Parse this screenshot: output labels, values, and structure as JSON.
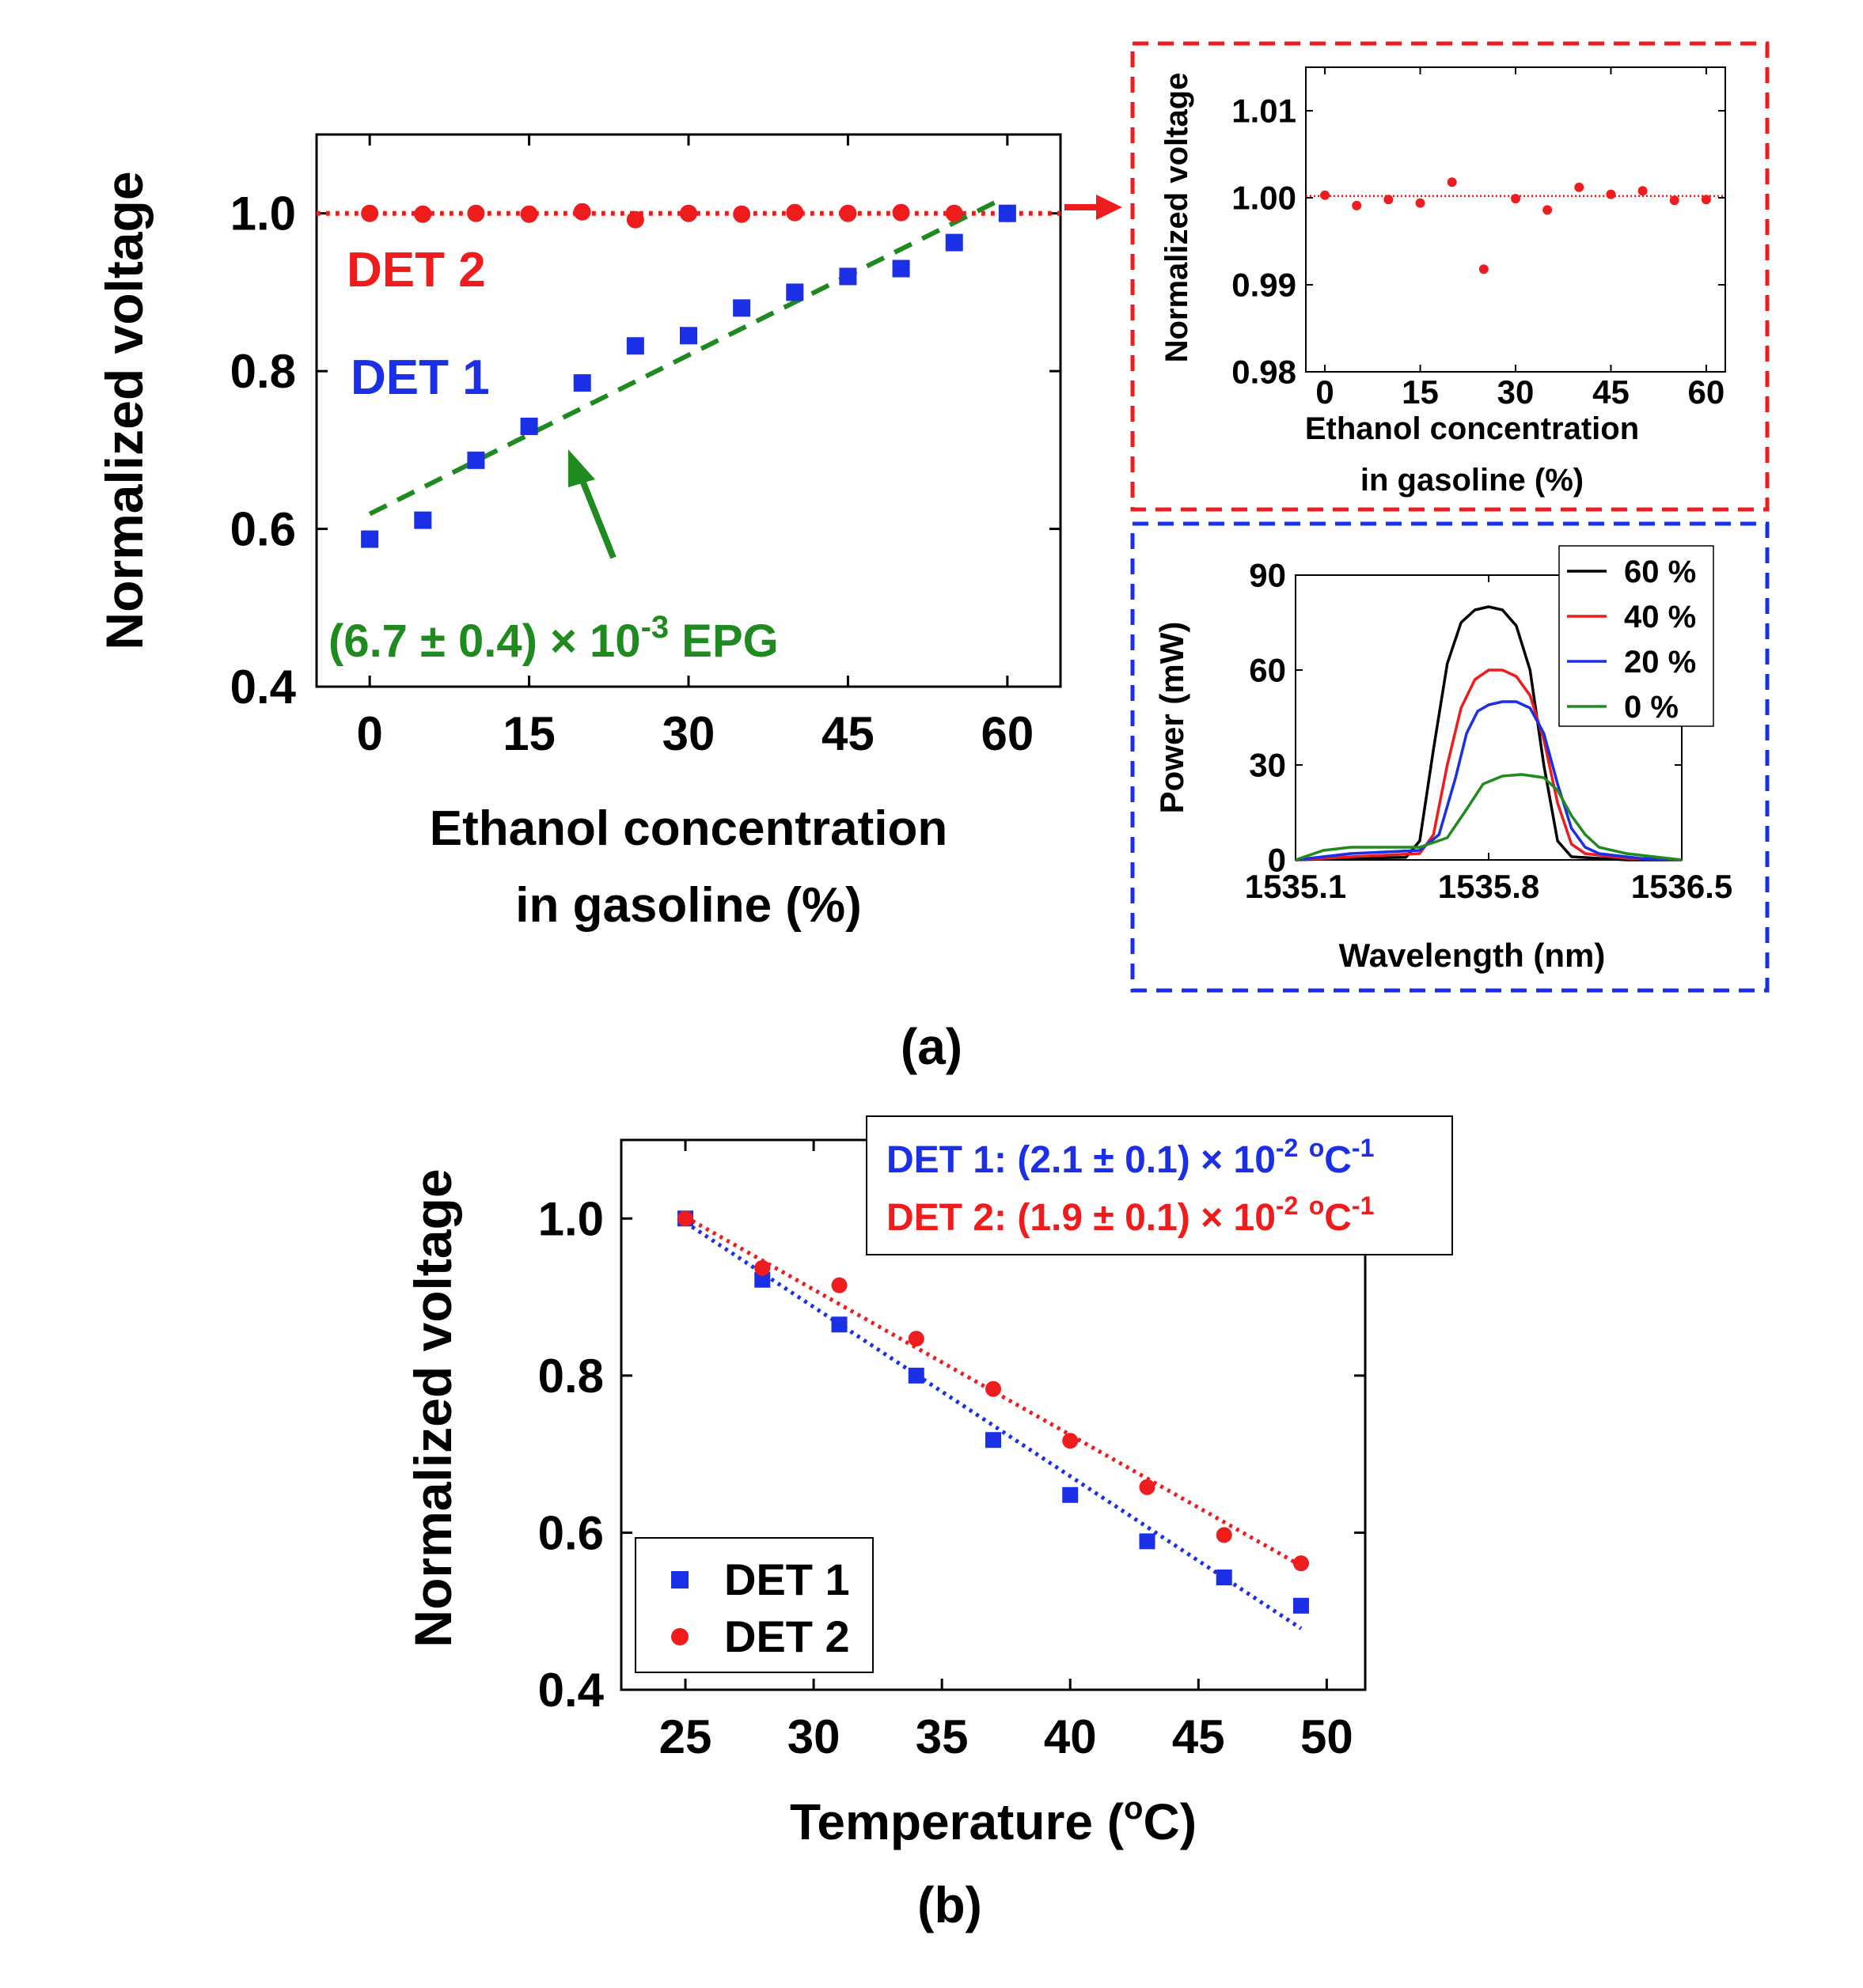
{
  "colors": {
    "det1": "#1a2fe6",
    "det2": "#ee1c1c",
    "fit": "#1f8a1f",
    "axis": "#000000",
    "spec_60": "#000000",
    "spec_40": "#ee1c1c",
    "spec_20": "#1a2fe6",
    "spec_0": "#1f8a1f"
  },
  "panel_labels": {
    "a": "(a)",
    "b": "(b)"
  },
  "chart_data": [
    {
      "id": "main_a",
      "type": "scatter",
      "ylabel": "Normalized voltage",
      "xlabel_line1": "Ethanol concentration",
      "xlabel_line2": "in gasoline (%)",
      "xlim": [
        -5,
        65
      ],
      "ylim": [
        0.4,
        1.1
      ],
      "xticks": [
        0,
        15,
        30,
        45,
        60
      ],
      "xtick_labels": [
        "0",
        "15",
        "30",
        "45",
        "60"
      ],
      "yticks": [
        0.4,
        0.6,
        0.8,
        1.0
      ],
      "ytick_labels": [
        "0.4",
        "0.6",
        "0.8",
        "1.0"
      ],
      "series": [
        {
          "name": "DET 2",
          "marker": "circle",
          "color": "#ee1c1c",
          "x": [
            0,
            5,
            10,
            15,
            20,
            25,
            30,
            35,
            40,
            45,
            50,
            55,
            60
          ],
          "y": [
            1.0,
            0.999,
            1.0,
            0.999,
            1.002,
            0.992,
            1.0,
            0.999,
            1.001,
            1.0,
            1.001,
            1.0,
            1.0
          ],
          "fit": {
            "style": "dotted",
            "x": [
              -5,
              65
            ],
            "y": [
              1.0,
              1.0
            ]
          }
        },
        {
          "name": "DET 1",
          "marker": "square",
          "color": "#1a2fe6",
          "x": [
            0,
            5,
            10,
            15,
            20,
            25,
            30,
            35,
            40,
            45,
            50,
            55,
            60
          ],
          "y": [
            0.587,
            0.611,
            0.687,
            0.73,
            0.785,
            0.832,
            0.845,
            0.88,
            0.9,
            0.92,
            0.93,
            0.963,
            1.0
          ],
          "fit": {
            "style": "dashed",
            "color": "#1f8a1f",
            "x": [
              0,
              59
            ],
            "y": [
              0.619,
              1.015
            ]
          }
        }
      ],
      "labels": {
        "det2": "DET 2",
        "det1": "DET 1"
      },
      "annotation": {
        "text_base": "(6.7 ± 0.4) × 10",
        "text_exp": "-3",
        "text_tail": " EPG"
      }
    },
    {
      "id": "inset_red",
      "type": "scatter",
      "ylabel": "Normalized voltage",
      "xlabel_line1": "Ethanol concentration",
      "xlabel_line2": "in gasoline (%)",
      "xlim": [
        -3,
        63
      ],
      "ylim": [
        0.98,
        1.015
      ],
      "xticks": [
        0,
        15,
        30,
        45,
        60
      ],
      "xtick_labels": [
        "0",
        "15",
        "30",
        "45",
        "60"
      ],
      "yticks": [
        0.98,
        0.99,
        1.0,
        1.01
      ],
      "ytick_labels": [
        "0.98",
        "0.99",
        "1.00",
        "1.01"
      ],
      "series": [
        {
          "name": "DET 2",
          "marker": "circle",
          "color": "#ee1c1c",
          "x": [
            0,
            5,
            10,
            15,
            20,
            25,
            30,
            35,
            40,
            45,
            50,
            55,
            60
          ],
          "y": [
            1.0003,
            0.9991,
            0.9998,
            0.9994,
            1.0018,
            0.9918,
            0.9999,
            0.9986,
            1.0012,
            1.0004,
            1.0008,
            0.9997,
            0.9998
          ],
          "fit": {
            "style": "dotted",
            "x": [
              -3,
              63
            ],
            "y": [
              1.0002,
              1.0002
            ]
          }
        }
      ]
    },
    {
      "id": "inset_blue",
      "type": "line",
      "ylabel": "Power (mW)",
      "xlabel": "Wavelength (nm)",
      "xlim": [
        1535.1,
        1536.5
      ],
      "ylim": [
        0,
        90
      ],
      "xticks": [
        1535.1,
        1535.8,
        1536.5
      ],
      "xtick_labels": [
        "1535.1",
        "1535.8",
        "1536.5"
      ],
      "yticks": [
        0,
        30,
        60,
        90
      ],
      "ytick_labels": [
        "0",
        "30",
        "60",
        "90"
      ],
      "series": [
        {
          "name": "60 %",
          "color": "#000000",
          "x": [
            1535.1,
            1535.3,
            1535.5,
            1535.55,
            1535.6,
            1535.65,
            1535.7,
            1535.75,
            1535.8,
            1535.85,
            1535.9,
            1535.95,
            1536.0,
            1536.05,
            1536.1,
            1536.3,
            1536.5
          ],
          "y": [
            0,
            0.5,
            0.8,
            6,
            35,
            62,
            75,
            79,
            80,
            79,
            74,
            60,
            30,
            6,
            1,
            0,
            0
          ]
        },
        {
          "name": "40 %",
          "color": "#ee1c1c",
          "x": [
            1535.1,
            1535.3,
            1535.55,
            1535.6,
            1535.65,
            1535.7,
            1535.75,
            1535.8,
            1535.85,
            1535.9,
            1535.95,
            1536.0,
            1536.05,
            1536.1,
            1536.15,
            1536.3,
            1536.5
          ],
          "y": [
            0,
            1,
            2,
            8,
            30,
            48,
            57,
            60,
            60,
            58,
            52,
            38,
            18,
            5,
            2,
            0.5,
            0
          ]
        },
        {
          "name": "20 %",
          "color": "#1a2fe6",
          "x": [
            1535.1,
            1535.3,
            1535.55,
            1535.62,
            1535.68,
            1535.72,
            1535.76,
            1535.8,
            1535.85,
            1535.9,
            1535.95,
            1536.0,
            1536.05,
            1536.1,
            1536.15,
            1536.2,
            1536.35,
            1536.5
          ],
          "y": [
            0,
            2,
            3,
            8,
            26,
            40,
            47,
            49,
            50,
            50,
            48,
            40,
            24,
            10,
            4,
            2,
            0.5,
            0
          ]
        },
        {
          "name": "0 %",
          "color": "#1f8a1f",
          "x": [
            1535.1,
            1535.2,
            1535.3,
            1535.55,
            1535.65,
            1535.72,
            1535.78,
            1535.85,
            1535.92,
            1536.0,
            1536.05,
            1536.1,
            1536.15,
            1536.2,
            1536.3,
            1536.4,
            1536.5
          ],
          "y": [
            0,
            3,
            4,
            4,
            7,
            16,
            24,
            26.5,
            27,
            26,
            22,
            14,
            8,
            4,
            2,
            1,
            0
          ]
        }
      ],
      "legend_location": "top-right"
    },
    {
      "id": "main_b",
      "type": "scatter",
      "ylabel": "Normalized voltage",
      "xlabel_base": "Temperature (",
      "xlabel_sup": "o",
      "xlabel_tail": "C)",
      "xlim": [
        22.5,
        51.5
      ],
      "ylim": [
        0.4,
        1.1
      ],
      "xticks": [
        25,
        30,
        35,
        40,
        45,
        50
      ],
      "xtick_labels": [
        "25",
        "30",
        "35",
        "40",
        "45",
        "50"
      ],
      "yticks": [
        0.4,
        0.6,
        0.8,
        1.0
      ],
      "ytick_labels": [
        "0.4",
        "0.6",
        "0.8",
        "1.0"
      ],
      "series": [
        {
          "name": "DET 1",
          "marker": "square",
          "color": "#1a2fe6",
          "x": [
            25,
            28,
            31,
            34,
            37,
            40,
            43,
            46,
            49
          ],
          "y": [
            1.0,
            0.922,
            0.865,
            0.8,
            0.718,
            0.648,
            0.589,
            0.543,
            0.507
          ],
          "fit": {
            "style": "dotted",
            "x": [
              25,
              49
            ],
            "y": [
              0.995,
              0.478
            ]
          }
        },
        {
          "name": "DET 2",
          "marker": "circle",
          "color": "#ee1c1c",
          "x": [
            25,
            28,
            31,
            34,
            37,
            40,
            43,
            46,
            49
          ],
          "y": [
            1.0,
            0.937,
            0.915,
            0.847,
            0.783,
            0.717,
            0.658,
            0.597,
            0.561
          ],
          "fit": {
            "style": "dotted",
            "x": [
              25,
              49
            ],
            "y": [
              1.002,
              0.558
            ]
          }
        }
      ],
      "legend": {
        "det1": "DET 1",
        "det2": "DET 2",
        "location": "bottom-left"
      },
      "slopes": {
        "det1": {
          "prefix": "DET 1: (2.1 ± 0.1) × 10",
          "exp": "-2",
          "mid": " ",
          "unit_sup": "o",
          "unit": "C",
          "unit_exp": "-1"
        },
        "det2": {
          "prefix": "DET 2: (1.9 ± 0.1) × 10",
          "exp": "-2",
          "mid": " ",
          "unit_sup": "o",
          "unit": "C",
          "unit_exp": "-1"
        }
      }
    }
  ]
}
